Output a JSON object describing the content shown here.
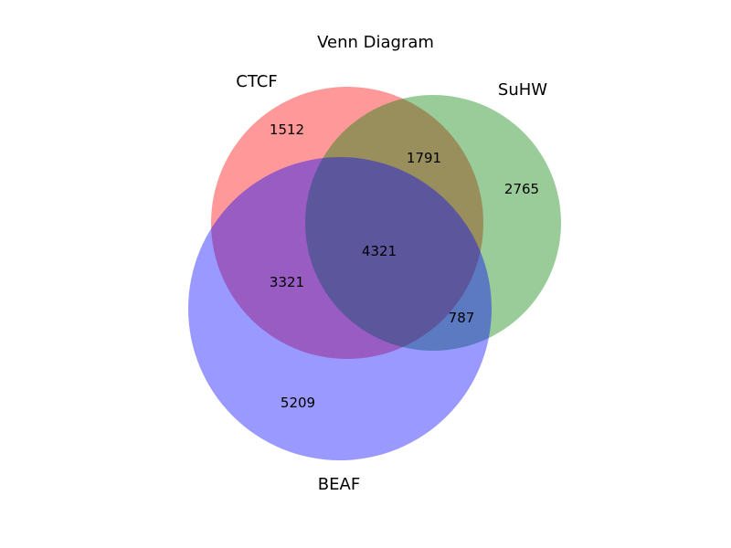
{
  "title": "Venn Diagram",
  "sets": [
    {
      "name": "CTCF",
      "color": "#ff0000"
    },
    {
      "name": "SuHW",
      "color": "#008000"
    },
    {
      "name": "BEAF",
      "color": "#0000ff"
    }
  ],
  "regions": {
    "ctcf_only": "1512",
    "suhw_only": "2765",
    "beaf_only": "5209",
    "ctcf_suhw": "1791",
    "ctcf_beaf": "3321",
    "suhw_beaf": "787",
    "all_three": "4321"
  }
}
